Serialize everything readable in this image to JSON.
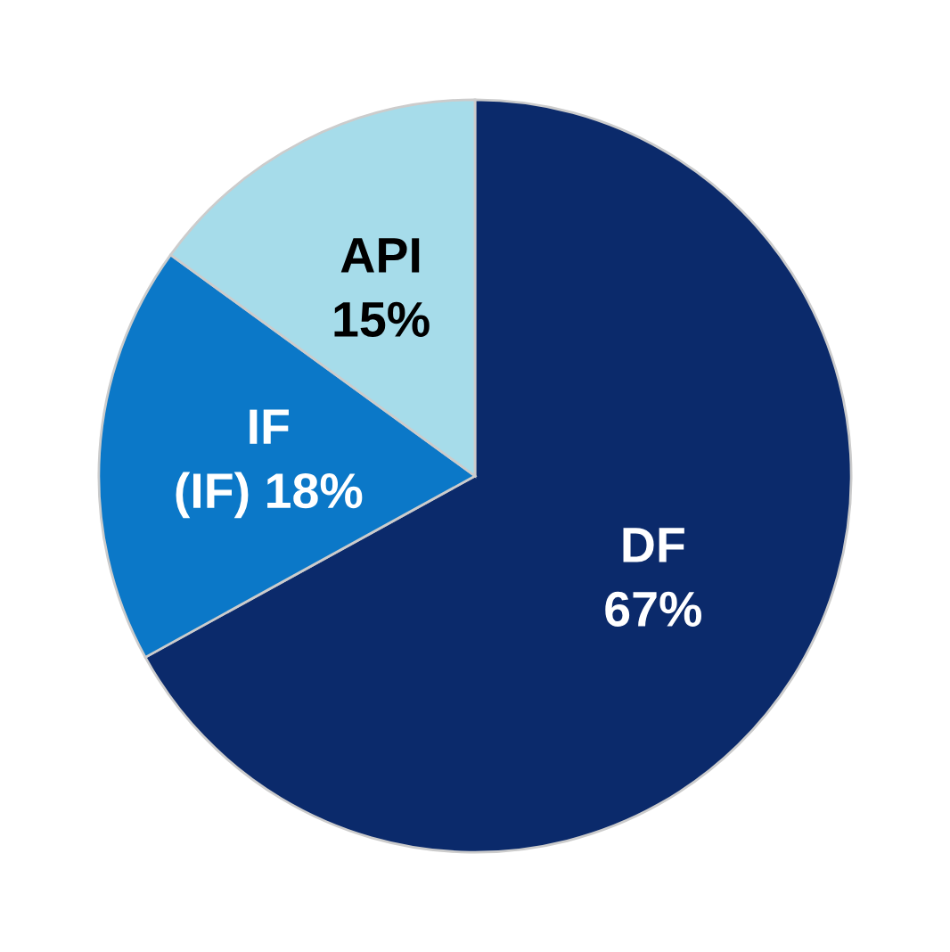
{
  "chart_data": {
    "type": "pie",
    "categories": [
      "DF",
      "IF",
      "API"
    ],
    "values": [
      67,
      18,
      15
    ],
    "value_labels": [
      "67%",
      "(IF) 18%",
      "15%"
    ],
    "colors": [
      "#0b2a6b",
      "#0b78c8",
      "#a6dcea"
    ]
  }
}
